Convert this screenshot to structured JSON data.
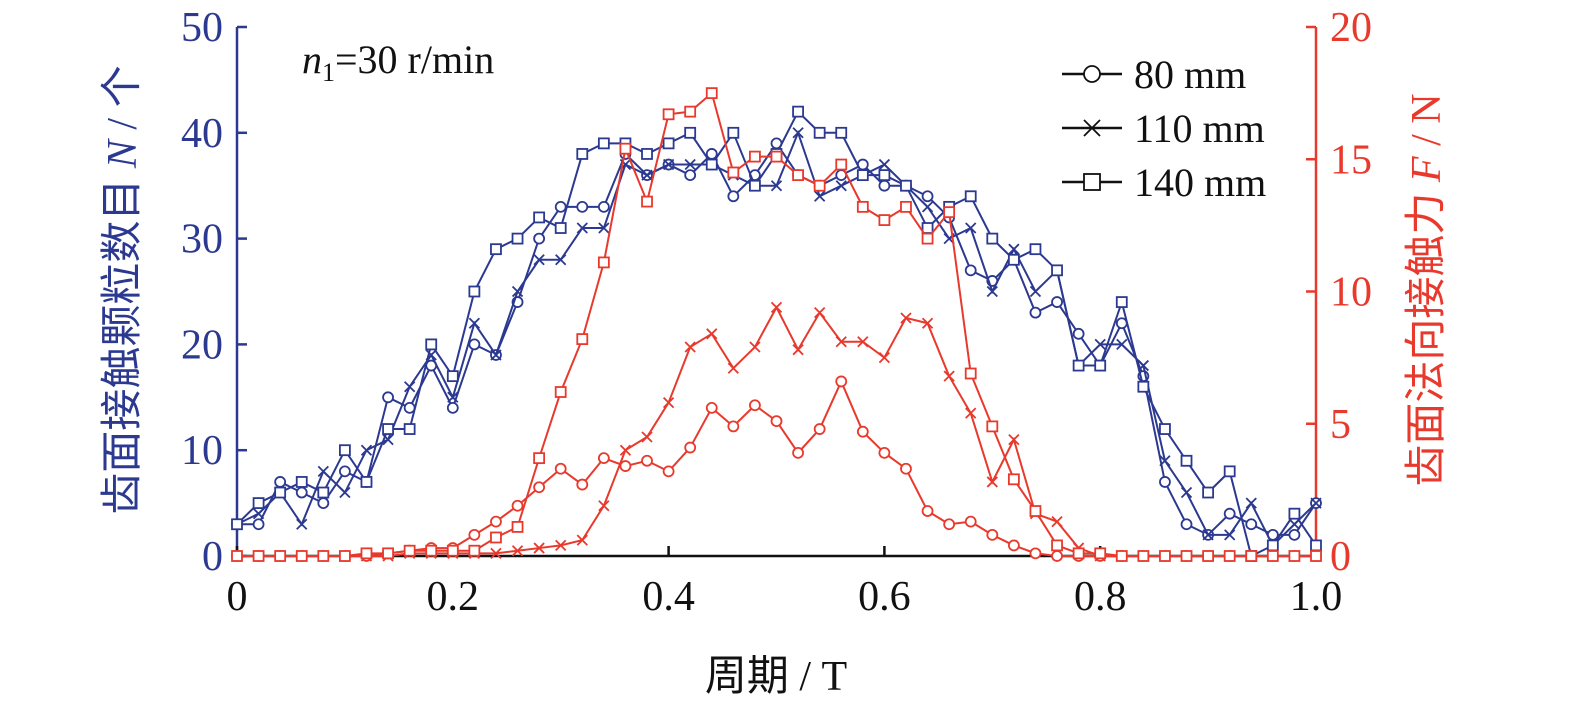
{
  "chart_data": {
    "type": "line",
    "annotation": {
      "var": "n",
      "sub": "1",
      "rest": "=30 r/min"
    },
    "xlabel": "周期 / T",
    "ylabel_left": {
      "text": "齿面接触颗粒数目 ",
      "var": "N",
      "unit": " / 个"
    },
    "ylabel_right": {
      "text": "齿面法向接触力 ",
      "var": "F",
      "unit": " / N"
    },
    "xlim": [
      0,
      1.0
    ],
    "ylim_left": [
      0,
      50
    ],
    "ylim_right": [
      0,
      20
    ],
    "xticks": [
      "0",
      "0.2",
      "0.4",
      "0.6",
      "0.8",
      "1.0"
    ],
    "yticks_left": [
      "0",
      "10",
      "20",
      "30",
      "40",
      "50"
    ],
    "yticks_right": [
      "0",
      "5",
      "10",
      "15",
      "20"
    ],
    "colors": {
      "count": "#2b3990",
      "force": "#e8392c",
      "legend": "#111111"
    },
    "legend_position": "top-right",
    "legend": [
      {
        "name": "80 mm",
        "marker": "circle"
      },
      {
        "name": "110 mm",
        "marker": "x"
      },
      {
        "name": "140 mm",
        "marker": "square"
      }
    ],
    "x": [
      0,
      0.02,
      0.04,
      0.06,
      0.08,
      0.1,
      0.12,
      0.14,
      0.16,
      0.18,
      0.2,
      0.22,
      0.24,
      0.26,
      0.28,
      0.3,
      0.32,
      0.34,
      0.36,
      0.38,
      0.4,
      0.42,
      0.44,
      0.46,
      0.48,
      0.5,
      0.52,
      0.54,
      0.56,
      0.58,
      0.6,
      0.62,
      0.64,
      0.66,
      0.68,
      0.7,
      0.72,
      0.74,
      0.76,
      0.78,
      0.8,
      0.82,
      0.84,
      0.86,
      0.88,
      0.9,
      0.92,
      0.94,
      0.96,
      0.98,
      1.0
    ],
    "series": [
      {
        "name": "80 mm",
        "axis": "left",
        "marker": "circle",
        "values": [
          3,
          3,
          7,
          6,
          5,
          8,
          7,
          15,
          14,
          18,
          14,
          20,
          19,
          24,
          30,
          33,
          33,
          33,
          38,
          36,
          37,
          36,
          38,
          34,
          36,
          39,
          36,
          35,
          36,
          37,
          35,
          35,
          34,
          32,
          27,
          26,
          28,
          23,
          24,
          21,
          18,
          22,
          17,
          7,
          3,
          2,
          4,
          3,
          2,
          2,
          5
        ]
      },
      {
        "name": "110 mm",
        "axis": "left",
        "marker": "x",
        "values": [
          3,
          4,
          6,
          3,
          8,
          6,
          10,
          11,
          16,
          19,
          15,
          22,
          19,
          25,
          28,
          28,
          31,
          31,
          37,
          36,
          37,
          37,
          37,
          36,
          35,
          35,
          40,
          34,
          35,
          36,
          37,
          35,
          33,
          30,
          31,
          25,
          29,
          25,
          27,
          18,
          20,
          20,
          18,
          9,
          6,
          2,
          2,
          5,
          1,
          3,
          5
        ]
      },
      {
        "name": "140 mm",
        "axis": "left",
        "marker": "square",
        "values": [
          3,
          5,
          6,
          7,
          6,
          10,
          7,
          12,
          12,
          20,
          17,
          25,
          29,
          30,
          32,
          31,
          38,
          39,
          39,
          38,
          39,
          40,
          37,
          40,
          35,
          38,
          42,
          40,
          40,
          36,
          36,
          35,
          31,
          33,
          34,
          30,
          28,
          29,
          27,
          18,
          18,
          24,
          16,
          12,
          9,
          6,
          8,
          0,
          1,
          4,
          1
        ]
      },
      {
        "name": "80 mm",
        "axis": "right",
        "marker": "circle",
        "values": [
          0,
          0,
          0,
          0,
          0,
          0,
          0,
          0.1,
          0.2,
          0.3,
          0.3,
          0.8,
          1.3,
          1.9,
          2.6,
          3.3,
          2.7,
          3.7,
          3.4,
          3.6,
          3.2,
          4.1,
          5.6,
          4.9,
          5.7,
          5.1,
          3.9,
          4.8,
          6.6,
          4.7,
          3.9,
          3.3,
          1.7,
          1.2,
          1.3,
          0.8,
          0.4,
          0.1,
          0,
          0,
          0,
          0,
          0,
          0,
          0,
          0,
          0,
          0,
          0,
          0,
          0
        ]
      },
      {
        "name": "110 mm",
        "axis": "right",
        "marker": "x",
        "values": [
          0,
          0,
          0,
          0,
          0,
          0,
          0,
          0,
          0.1,
          0.1,
          0.1,
          0.1,
          0.1,
          0.2,
          0.3,
          0.4,
          0.6,
          1.9,
          4.0,
          4.5,
          5.8,
          7.9,
          8.4,
          7.1,
          7.9,
          9.4,
          7.8,
          9.2,
          8.1,
          8.1,
          7.5,
          9.0,
          8.8,
          6.8,
          5.4,
          2.8,
          4.4,
          1.6,
          1.3,
          0.3,
          0,
          0,
          0,
          0,
          0,
          0,
          0,
          0,
          0,
          0,
          0
        ]
      },
      {
        "name": "140 mm",
        "axis": "right",
        "marker": "square",
        "values": [
          0,
          0,
          0,
          0,
          0,
          0,
          0.1,
          0.1,
          0.2,
          0.2,
          0.2,
          0.2,
          0.7,
          1.1,
          3.7,
          6.2,
          8.2,
          11.1,
          15.4,
          13.4,
          16.7,
          16.8,
          17.5,
          14.5,
          15.1,
          15.1,
          14.4,
          14.0,
          14.8,
          13.2,
          12.7,
          13.2,
          12.0,
          13.0,
          6.9,
          4.9,
          2.9,
          1.7,
          0.4,
          0.1,
          0.1,
          0,
          0,
          0,
          0,
          0,
          0,
          0,
          0,
          0,
          0
        ]
      }
    ]
  }
}
